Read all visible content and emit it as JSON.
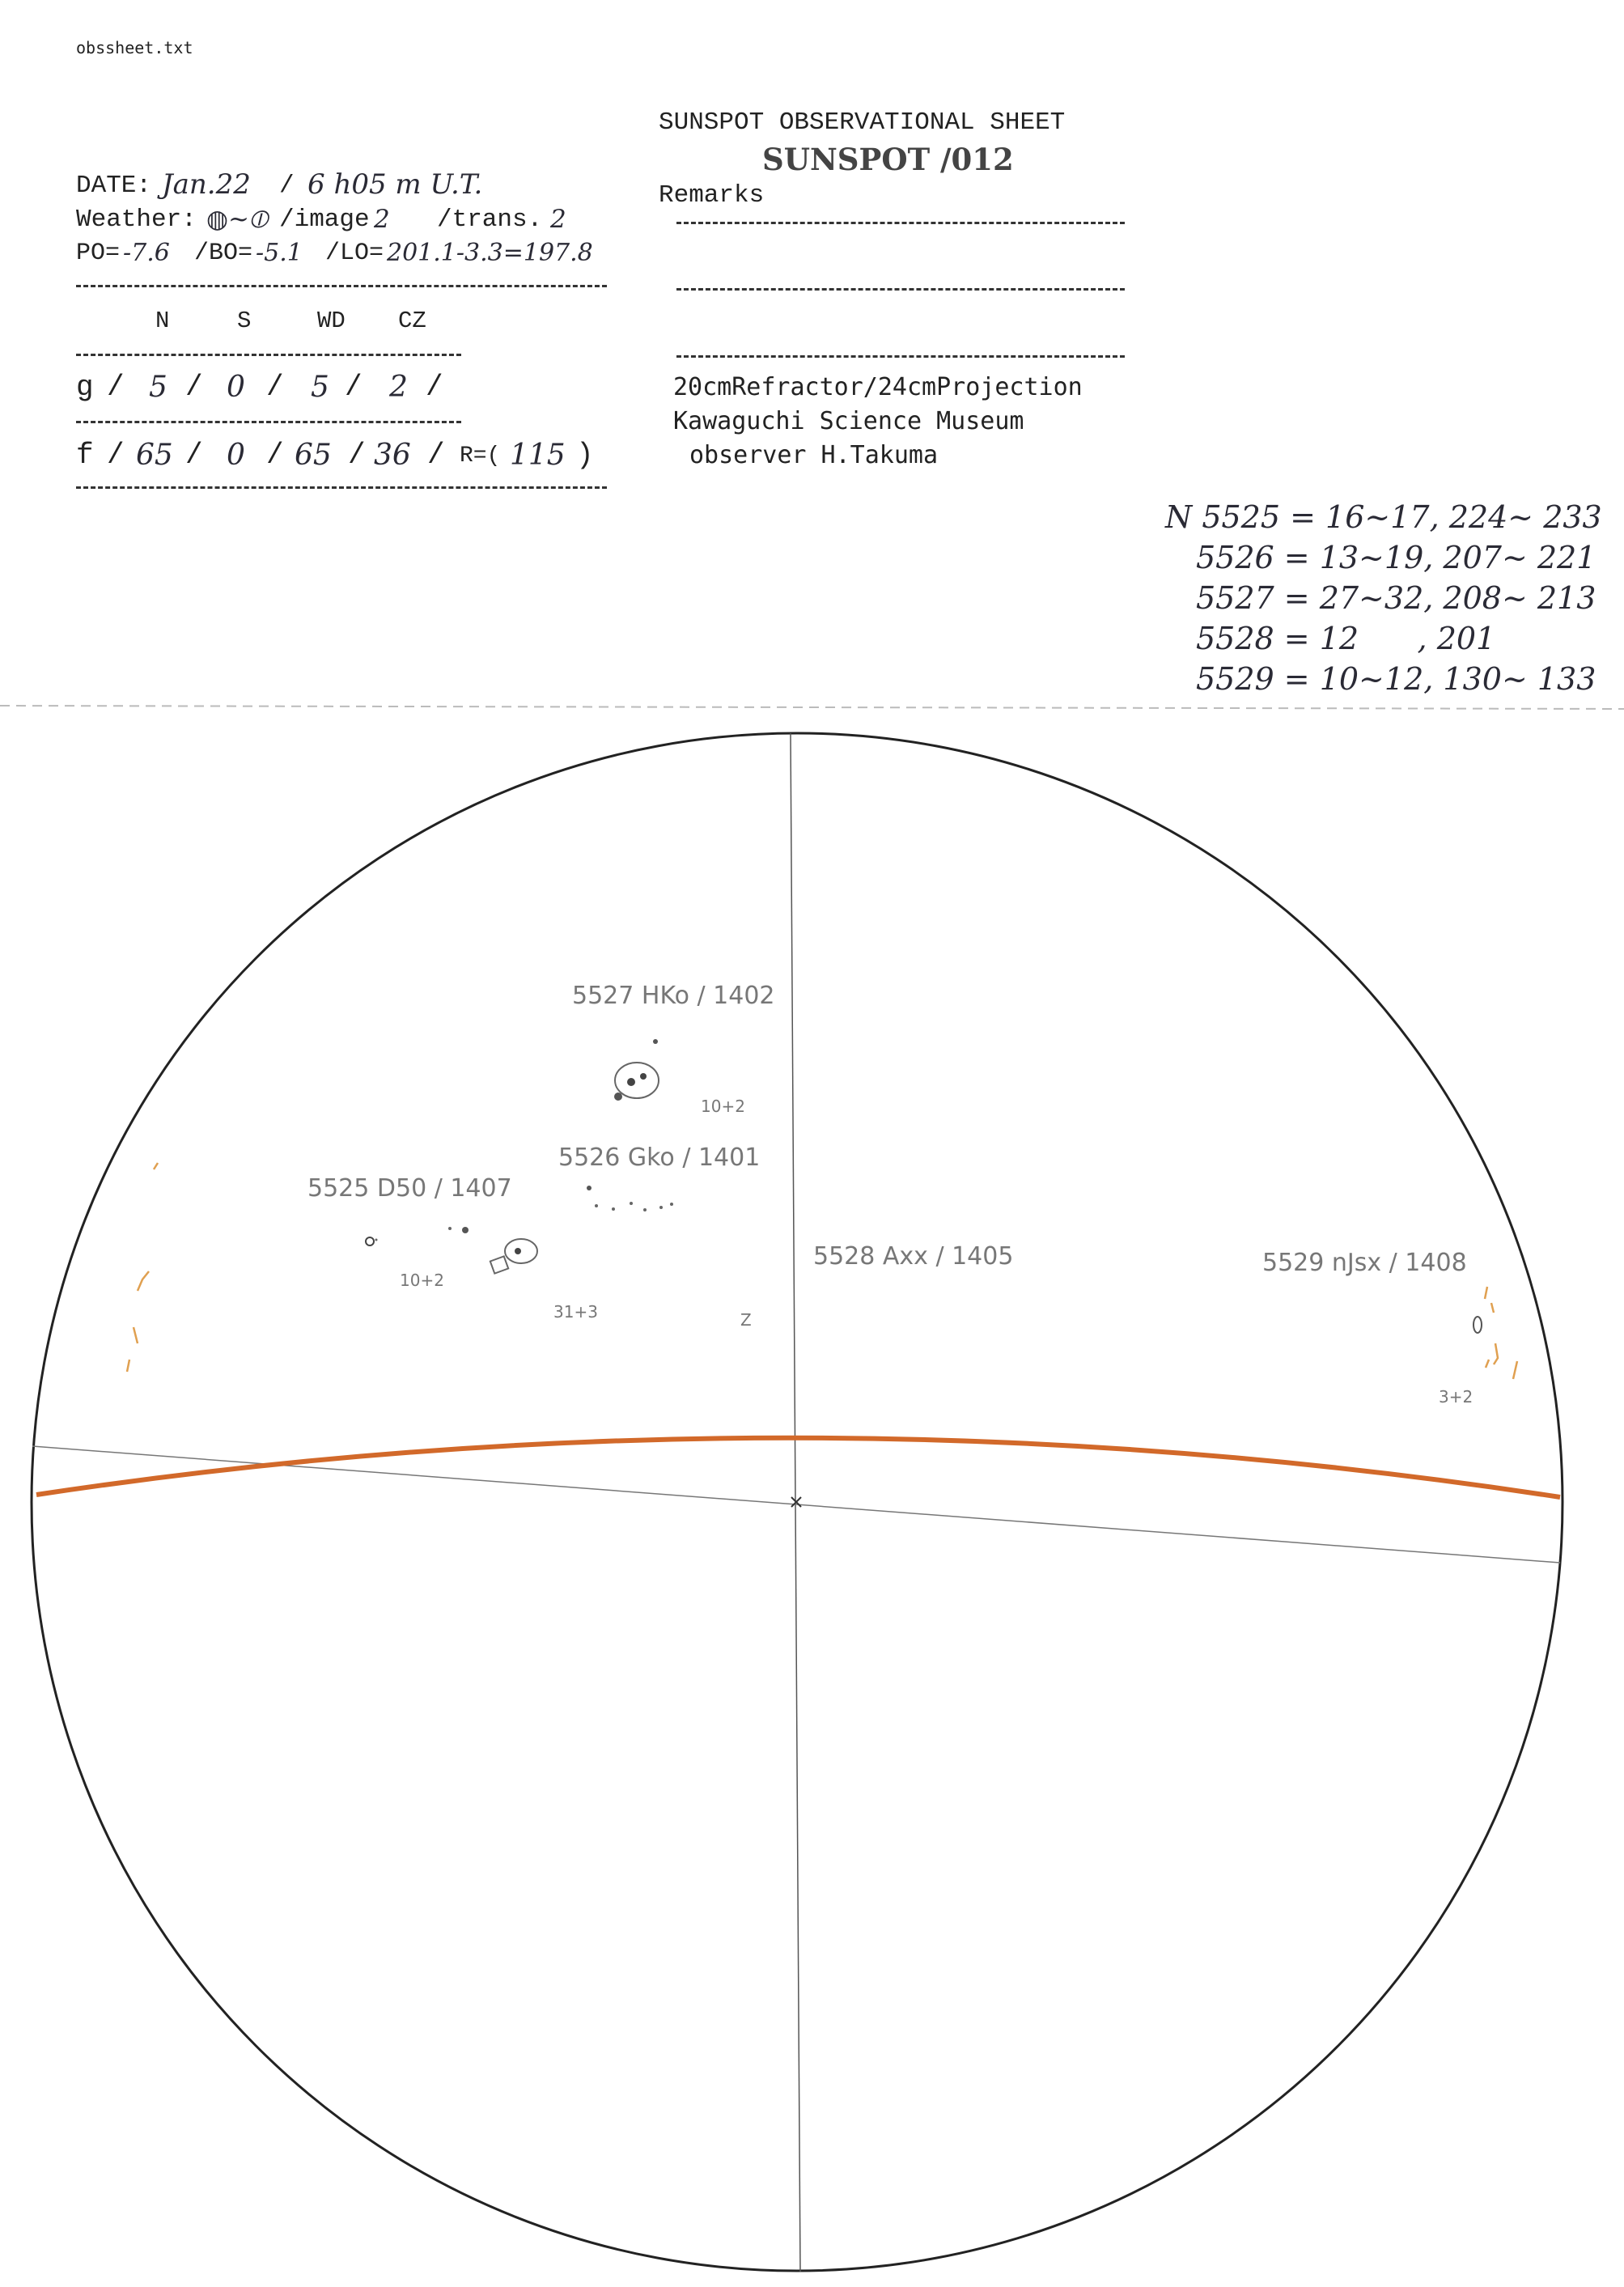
{
  "file_name": "obssheet.txt",
  "header": {
    "title": "SUNSPOT OBSERVATIONAL SHEET",
    "stamp": "SUNSPOT /012",
    "remarks_label": "Remarks"
  },
  "observation": {
    "date_label": "DATE:",
    "date_value": "Jan.22",
    "time_value": "6 h05 m U.T.",
    "weather_label": "Weather:",
    "weather_value": "◍~⦶",
    "image_label": "/image",
    "image_value": "2",
    "trans_label": "/trans.",
    "trans_value": "2",
    "po_label": "PO=",
    "po_value": "-7.6",
    "bo_label": "/BO=",
    "bo_value": "-5.1",
    "lo_label": "/LO=",
    "lo_value": "201.1-3.3=197.8"
  },
  "counts": {
    "columns": [
      "N",
      "S",
      "WD",
      "CZ"
    ],
    "rows": [
      {
        "label": "g",
        "values": [
          "5",
          "0",
          "5",
          "2"
        ]
      },
      {
        "label": "f",
        "values": [
          "65",
          "0",
          "65",
          "36"
        ]
      }
    ],
    "r_label": "R=(",
    "r_value": "115",
    "r_close": ")"
  },
  "instrument": {
    "telescope": "20cmRefractor/24cmProjection",
    "site": "Kawaguchi Science Museum",
    "observer": "observer H.Takuma"
  },
  "group_notes": [
    "N 5525 = 16~17, 224~ 233",
    "5526 = 13~19, 207~ 221",
    "5527 = 27~32, 208~ 213",
    "5528 = 12      , 201",
    "5529 = 10~12, 130~ 133"
  ],
  "disk_labels": {
    "g5527": "5527 HKo / 1402",
    "g5527_count": "10+2",
    "g5526": "5526 Gko / 1401",
    "g5526_count": "31+3",
    "g5525": "5525 D50 / 1407",
    "g5525_count": "10+2",
    "g5528": "5528 Axx / 1405",
    "g5528_mark": "Z",
    "g5529": "5529 nJsx / 1408",
    "g5529_count": "3+2"
  },
  "colors": {
    "equator": "#d2692a",
    "pencil": "#777777",
    "faculae": "#e0a050"
  }
}
